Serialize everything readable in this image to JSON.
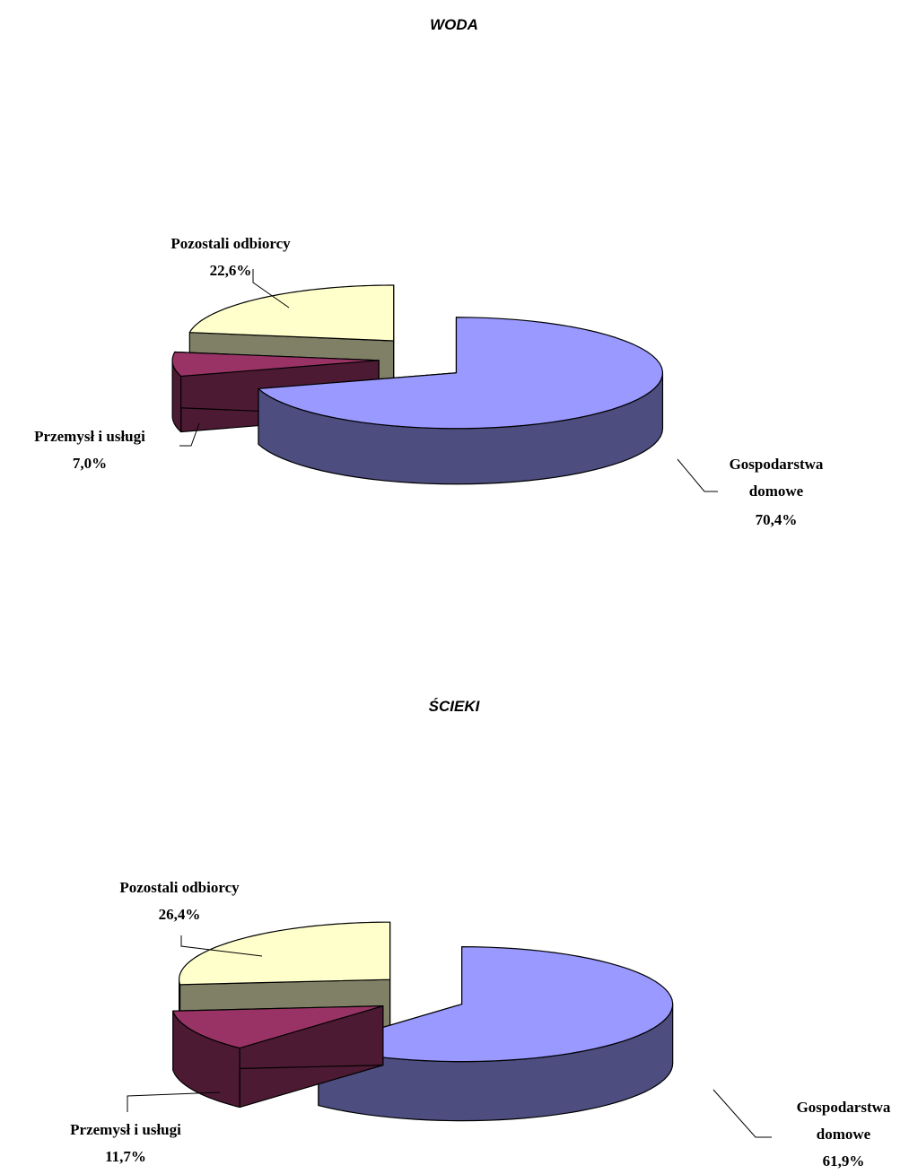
{
  "chart_data": [
    {
      "type": "pie",
      "title": "WODA",
      "categories": [
        "Gospodarstwa domowe",
        "Przemysł i usługi",
        "Pozostali odbiorcy"
      ],
      "values": [
        70.4,
        7.0,
        22.6
      ],
      "value_labels": [
        "70,4%",
        "7,0%",
        "22,6%"
      ],
      "colors": [
        "#9999ff",
        "#993366",
        "#ffffcc"
      ],
      "side_colors": [
        "#4d4d80",
        "#4d1a33",
        "#808066"
      ]
    },
    {
      "type": "pie",
      "title": "ŚCIEKI",
      "categories": [
        "Gospodarstwa domowe",
        "Przemysł i usługi",
        "Pozostali odbiorcy"
      ],
      "values": [
        61.9,
        11.7,
        26.4
      ],
      "value_labels": [
        "61,9%",
        "11,7%",
        "26,4%"
      ],
      "colors": [
        "#9999ff",
        "#993366",
        "#ffffcc"
      ],
      "side_colors": [
        "#4d4d80",
        "#4d1a33",
        "#808066"
      ]
    }
  ]
}
